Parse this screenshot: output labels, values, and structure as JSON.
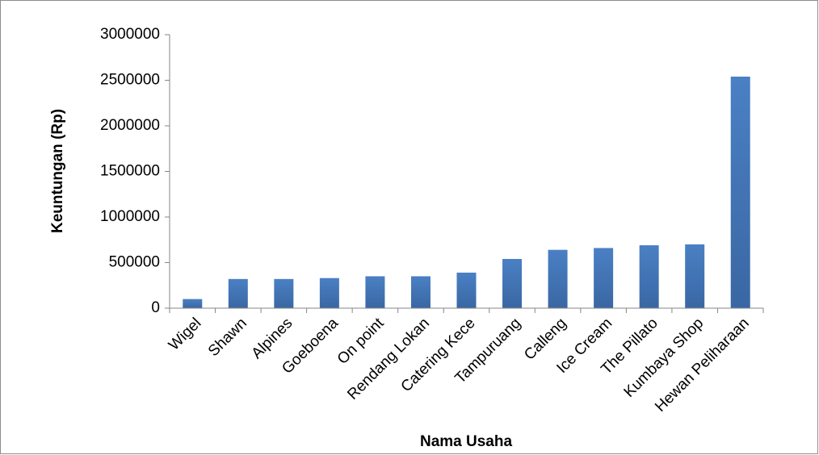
{
  "chart_data": {
    "type": "bar",
    "x_label": "Nama Usaha",
    "y_label": "Keuntungan (Rp)",
    "categories": [
      "Wigel",
      "Shawn",
      "Alpines",
      "Goeboena",
      "On point",
      "Rendang Lokan",
      "Catering Kece",
      "Tampuruang",
      "Calleng",
      "Ice Cream",
      "The Pillato",
      "Kumbaya Shop",
      "Hewan Peliharaan"
    ],
    "values": [
      100000,
      320000,
      320000,
      330000,
      350000,
      350000,
      390000,
      540000,
      640000,
      660000,
      690000,
      700000,
      2540000
    ],
    "color": "#4a7ebf",
    "ylim": [
      0,
      3000000
    ],
    "yticks": [
      0,
      500000,
      1000000,
      1500000,
      2000000,
      2500000,
      3000000
    ],
    "grid": false
  }
}
